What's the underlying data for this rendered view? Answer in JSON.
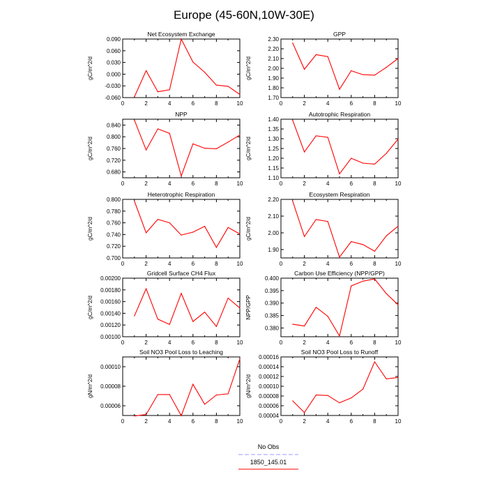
{
  "title": "Europe (45-60N,10W-30E)",
  "legend": {
    "entries": [
      {
        "label": "No Obs",
        "color": "#9999ff",
        "dashed": true
      },
      {
        "label": "1850_145.01",
        "color": "#ff0000",
        "dashed": false
      }
    ]
  },
  "chart_data": [
    {
      "type": "line",
      "title": "Net Ecosystem Exchange",
      "ylabel": "gC/m^2/d",
      "xlim": [
        0,
        10
      ],
      "xticks": [
        0,
        2,
        4,
        6,
        8,
        10
      ],
      "ylim": [
        -0.06,
        0.09
      ],
      "yticks": [
        "-0.060",
        "-0.030",
        "0.000",
        "0.030",
        "0.060",
        "0.090"
      ],
      "ytick_values": [
        -0.06,
        -0.03,
        0.0,
        0.03,
        0.06,
        0.09
      ],
      "series": [
        {
          "x": [
            1,
            2,
            3,
            4,
            5,
            6,
            7,
            8,
            9,
            10
          ],
          "values": [
            -0.058,
            0.009,
            -0.045,
            -0.04,
            0.09,
            0.031,
            0.005,
            -0.028,
            -0.031,
            -0.052
          ],
          "color": "#ff0000"
        }
      ]
    },
    {
      "type": "line",
      "title": "GPP",
      "ylabel": "gC/m^2/d",
      "xlim": [
        0,
        10
      ],
      "xticks": [
        0,
        2,
        4,
        6,
        8,
        10
      ],
      "ylim": [
        1.7,
        2.3
      ],
      "yticks": [
        "1.70",
        "1.80",
        "1.90",
        "2.00",
        "2.10",
        "2.20",
        "2.30"
      ],
      "ytick_values": [
        1.7,
        1.8,
        1.9,
        2.0,
        2.1,
        2.2,
        2.3
      ],
      "series": [
        {
          "x": [
            1,
            2,
            3,
            4,
            5,
            6,
            7,
            8,
            9,
            10
          ],
          "values": [
            2.26,
            1.99,
            2.14,
            2.12,
            1.785,
            1.975,
            1.935,
            1.93,
            2.01,
            2.1
          ],
          "color": "#ff0000"
        }
      ]
    },
    {
      "type": "line",
      "title": "NPP",
      "ylabel": "gC/m^2/d",
      "xlim": [
        0,
        10
      ],
      "xticks": [
        0,
        2,
        4,
        6,
        8,
        10
      ],
      "ylim": [
        0.66,
        0.86
      ],
      "yticks": [
        "0.680",
        "0.720",
        "0.760",
        "0.800",
        "0.840"
      ],
      "ytick_values": [
        0.68,
        0.72,
        0.76,
        0.8,
        0.84
      ],
      "series": [
        {
          "x": [
            1,
            2,
            3,
            4,
            5,
            6,
            7,
            8,
            9,
            10
          ],
          "values": [
            0.857,
            0.755,
            0.827,
            0.812,
            0.666,
            0.776,
            0.761,
            0.759,
            0.782,
            0.806
          ],
          "color": "#ff0000"
        }
      ]
    },
    {
      "type": "line",
      "title": "Autotrophic Respiration",
      "ylabel": "gC/m^2/d",
      "xlim": [
        0,
        10
      ],
      "xticks": [
        0,
        2,
        4,
        6,
        8,
        10
      ],
      "ylim": [
        1.1,
        1.4
      ],
      "yticks": [
        "1.10",
        "1.15",
        "1.20",
        "1.25",
        "1.30",
        "1.35",
        "1.40"
      ],
      "ytick_values": [
        1.1,
        1.15,
        1.2,
        1.25,
        1.3,
        1.35,
        1.4
      ],
      "series": [
        {
          "x": [
            1,
            2,
            3,
            4,
            5,
            6,
            7,
            8,
            9,
            10
          ],
          "values": [
            1.395,
            1.232,
            1.315,
            1.307,
            1.12,
            1.2,
            1.175,
            1.17,
            1.225,
            1.298
          ],
          "color": "#ff0000"
        }
      ]
    },
    {
      "type": "line",
      "title": "Heterotrophic Respiration",
      "ylabel": "gC/m^2/d",
      "xlim": [
        0,
        10
      ],
      "xticks": [
        0,
        2,
        4,
        6,
        8,
        10
      ],
      "ylim": [
        0.7,
        0.8
      ],
      "yticks": [
        "0.700",
        "0.720",
        "0.740",
        "0.760",
        "0.780",
        "0.800"
      ],
      "ytick_values": [
        0.7,
        0.72,
        0.74,
        0.76,
        0.78,
        0.8
      ],
      "series": [
        {
          "x": [
            1,
            2,
            3,
            4,
            5,
            6,
            7,
            8,
            9,
            10
          ],
          "values": [
            0.797,
            0.743,
            0.766,
            0.76,
            0.739,
            0.744,
            0.754,
            0.718,
            0.752,
            0.741
          ],
          "color": "#ff0000"
        }
      ]
    },
    {
      "type": "line",
      "title": "Ecosystem Respiration",
      "ylabel": "gC/m^2/d",
      "xlim": [
        0,
        10
      ],
      "xticks": [
        0,
        2,
        4,
        6,
        8,
        10
      ],
      "ylim": [
        1.85,
        2.2
      ],
      "yticks": [
        "1.90",
        "2.00",
        "2.10",
        "2.20"
      ],
      "ytick_values": [
        1.9,
        2.0,
        2.1,
        2.2
      ],
      "series": [
        {
          "x": [
            1,
            2,
            3,
            4,
            5,
            6,
            7,
            8,
            9,
            10
          ],
          "values": [
            2.19,
            1.978,
            2.08,
            2.068,
            1.855,
            1.948,
            1.93,
            1.89,
            1.982,
            2.04
          ],
          "color": "#ff0000"
        }
      ]
    },
    {
      "type": "line",
      "title": "Gridcell Surface CH4 Flux",
      "ylabel": "gC/m^2/d",
      "xlim": [
        0,
        10
      ],
      "xticks": [
        0,
        2,
        4,
        6,
        8,
        10
      ],
      "ylim": [
        0.001,
        0.002
      ],
      "yticks": [
        "0.00100",
        "0.00120",
        "0.00140",
        "0.00160",
        "0.00180",
        "0.00200"
      ],
      "ytick_values": [
        0.001,
        0.0012,
        0.0014,
        0.0016,
        0.0018,
        0.002
      ],
      "series": [
        {
          "x": [
            1,
            2,
            3,
            4,
            5,
            6,
            7,
            8,
            9,
            10
          ],
          "values": [
            0.001355,
            0.00182,
            0.0013,
            0.00121,
            0.00174,
            0.00126,
            0.00142,
            0.001175,
            0.00166,
            0.00149
          ],
          "color": "#ff0000"
        }
      ]
    },
    {
      "type": "line",
      "title": "Carbon Use Efficiency (NPP/GPP)",
      "ylabel": "NPP/GPP",
      "xlim": [
        0,
        10
      ],
      "xticks": [
        0,
        2,
        4,
        6,
        8,
        10
      ],
      "ylim": [
        0.3765,
        0.4
      ],
      "yticks": [
        "0.380",
        "0.385",
        "0.390",
        "0.395",
        "0.400"
      ],
      "ytick_values": [
        0.38,
        0.385,
        0.39,
        0.395,
        0.4
      ],
      "series": [
        {
          "x": [
            1,
            2,
            3,
            4,
            5,
            6,
            7,
            8,
            9,
            10
          ],
          "values": [
            0.3815,
            0.3808,
            0.3883,
            0.3847,
            0.3768,
            0.3969,
            0.3988,
            0.3997,
            0.3938,
            0.3893
          ],
          "color": "#ff0000"
        }
      ]
    },
    {
      "type": "line",
      "title": "Soil NO3 Pool Loss to Leaching",
      "ylabel": "gN/m^2/d",
      "xlim": [
        0,
        10
      ],
      "xticks": [
        0,
        2,
        4,
        6,
        8,
        10
      ],
      "ylim": [
        5e-05,
        0.00011
      ],
      "yticks": [
        "0.00006",
        "0.00008",
        "0.00010"
      ],
      "ytick_values": [
        6e-05,
        8e-05,
        0.0001
      ],
      "series": [
        {
          "x": [
            1,
            2,
            3,
            4,
            5,
            6,
            7,
            8,
            9,
            10
          ],
          "values": [
            4.95e-05,
            5.1e-05,
            7.15e-05,
            7.15e-05,
            4.98e-05,
            8.2e-05,
            6.15e-05,
            7.1e-05,
            7.22e-05,
            0.000108
          ],
          "color": "#ff0000"
        }
      ]
    },
    {
      "type": "line",
      "title": "Soil NO3 Pool Loss to Runoff",
      "ylabel": "gN/m^2/d",
      "xlim": [
        0,
        10
      ],
      "xticks": [
        0,
        2,
        4,
        6,
        8,
        10
      ],
      "ylim": [
        4e-05,
        0.00016
      ],
      "yticks": [
        "0.00004",
        "0.00006",
        "0.00008",
        "0.00010",
        "0.00012",
        "0.00014",
        "0.00016"
      ],
      "ytick_values": [
        4e-05,
        6e-05,
        8e-05,
        0.0001,
        0.00012,
        0.00014,
        0.00016
      ],
      "series": [
        {
          "x": [
            1,
            2,
            3,
            4,
            5,
            6,
            7,
            8,
            9,
            10
          ],
          "values": [
            7e-05,
            4.6e-05,
            8.2e-05,
            8.1e-05,
            6.6e-05,
            7.6e-05,
            9.4e-05,
            0.00015,
            0.000115,
            0.000118
          ],
          "color": "#ff0000"
        }
      ]
    }
  ]
}
